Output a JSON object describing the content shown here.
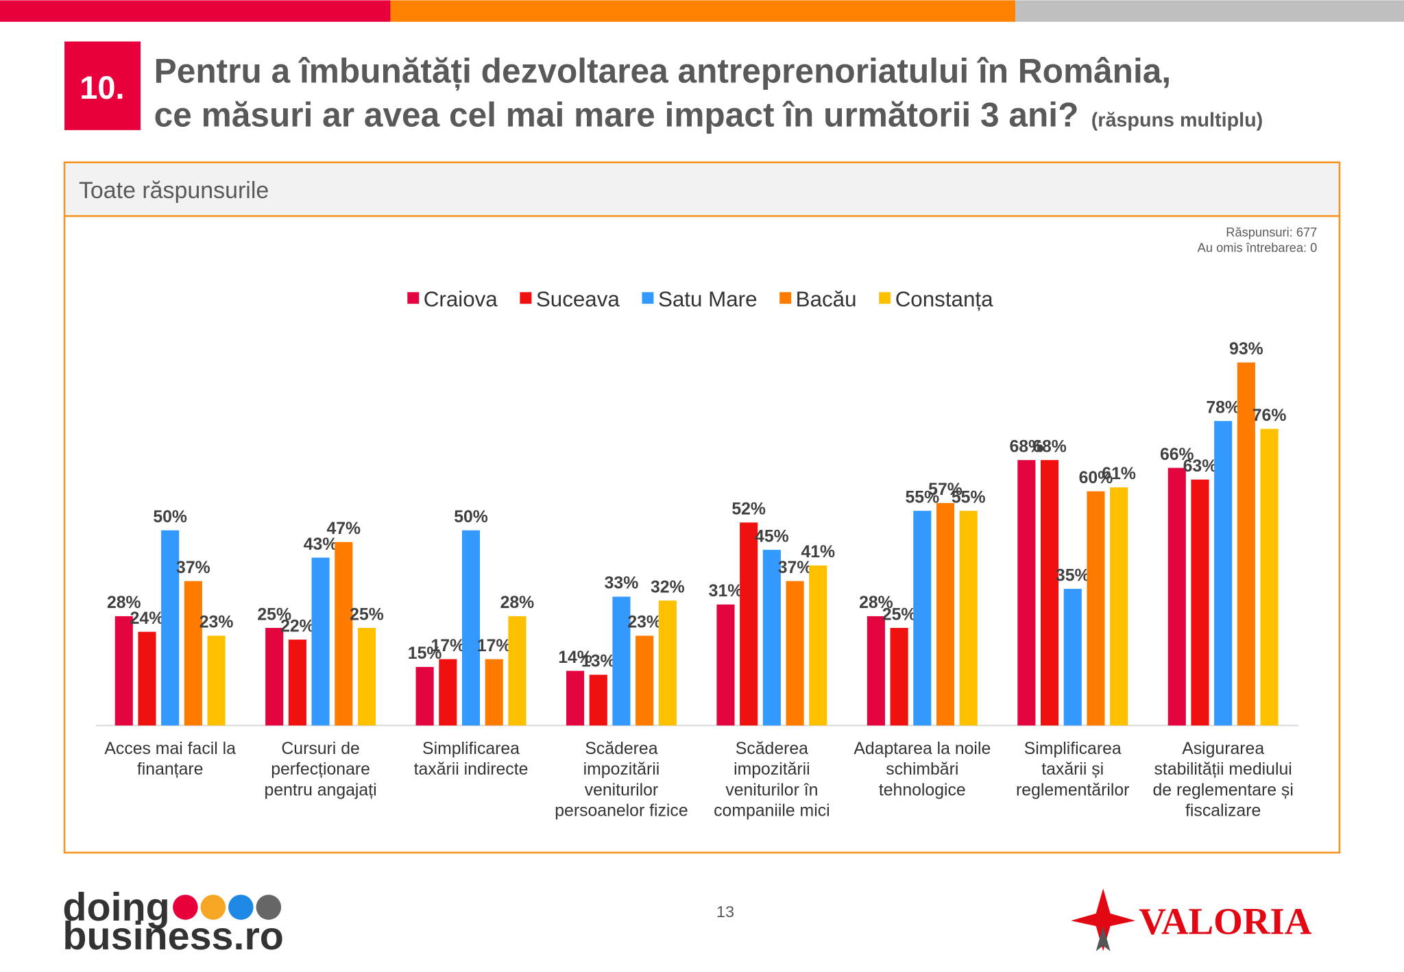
{
  "page": {
    "number": "10.",
    "title_line1": "Pentru a îmbunătăți dezvoltarea antreprenoriatului în România,",
    "title_line2": "ce măsuri ar avea cel mai mare impact în următorii 3 ani?",
    "title_note": "(răspuns multiplu)",
    "panel_title": "Toate răspunsurile",
    "responses": "Răspunsuri: 677",
    "skipped": "Au omis întrebarea: 0",
    "page_number": "13",
    "logo_left_line1": "doing",
    "logo_left_line2": "business.ro",
    "logo_right": "VALORIA"
  },
  "chart_data": {
    "type": "bar",
    "legend": "top",
    "ylim": [
      0,
      100
    ],
    "categories": [
      [
        "Acces mai facil la",
        "finanțare"
      ],
      [
        "Cursuri de",
        "perfecționare",
        "pentru angajați"
      ],
      [
        "Simplificarea",
        "taxării indirecte"
      ],
      [
        "Scăderea",
        "impozitării",
        "veniturilor",
        "persoanelor fizice"
      ],
      [
        "Scăderea",
        "impozitării",
        "veniturilor în",
        "companiile mici"
      ],
      [
        "Adaptarea la noile",
        "schimbări",
        "tehnologice"
      ],
      [
        "Simplificarea",
        "taxării și",
        "reglementărilor"
      ],
      [
        "Asigurarea",
        "stabilității mediului",
        "de reglementare și",
        "fiscalizare"
      ]
    ],
    "series": [
      {
        "name": "Craiova",
        "color": "#e3053f",
        "values": [
          28,
          25,
          15,
          14,
          31,
          28,
          68,
          66
        ],
        "value_labels": [
          "28%",
          "25%",
          "15%",
          "14%",
          "31%",
          "28%",
          "68%",
          "66%"
        ]
      },
      {
        "name": "Suceava",
        "color": "#f01010",
        "values": [
          24,
          22,
          17,
          13,
          52,
          25,
          68,
          63
        ],
        "value_labels": [
          "24%",
          "22%",
          "17%",
          "13%",
          "52%",
          "25%",
          "68%",
          "63%"
        ]
      },
      {
        "name": "Satu Mare",
        "color": "#3399ff",
        "values": [
          50,
          43,
          50,
          33,
          45,
          55,
          35,
          78
        ],
        "value_labels": [
          "50%",
          "43%",
          "50%",
          "33%",
          "45%",
          "55%",
          "35%",
          "78%"
        ]
      },
      {
        "name": "Bacău",
        "color": "#ff7b00",
        "values": [
          37,
          47,
          17,
          23,
          37,
          57,
          60,
          93
        ],
        "value_labels": [
          "37%",
          "47%",
          "17%",
          "23%",
          "37%",
          "57%",
          "60%",
          "93%"
        ]
      },
      {
        "name": "Constanța",
        "color": "#ffc000",
        "values": [
          23,
          25,
          28,
          32,
          41,
          55,
          61,
          76
        ],
        "value_labels": [
          "23%",
          "25%",
          "28%",
          "32%",
          "41%",
          "55%",
          "61%",
          "76%"
        ]
      }
    ]
  }
}
